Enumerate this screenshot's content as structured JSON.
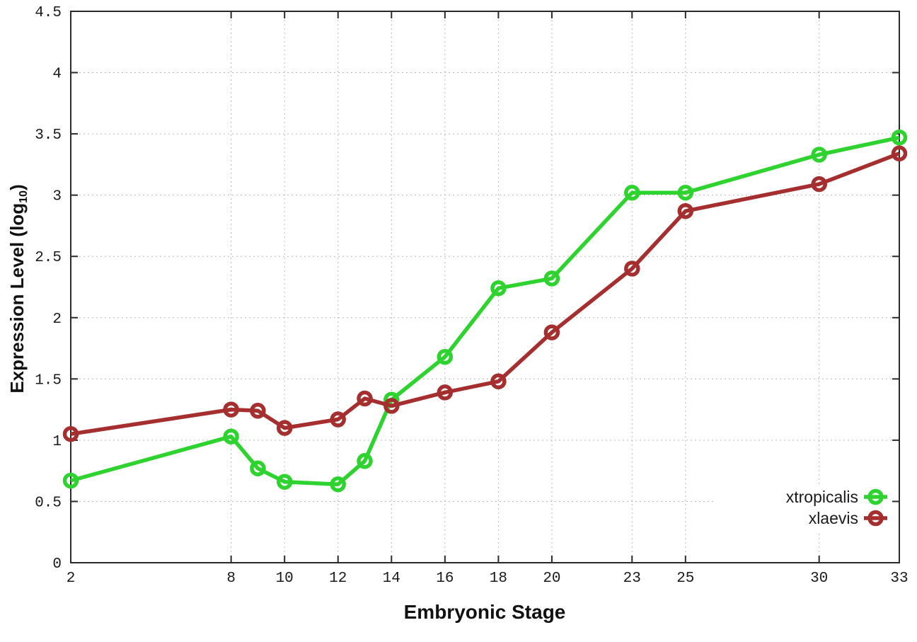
{
  "chart_data": {
    "type": "line",
    "title": "",
    "xlabel": "Embryonic Stage",
    "ylabel": "Expression Level (log10)",
    "ylabel_parts": {
      "main": "Expression Level (log",
      "sub": "10",
      "close": ")"
    },
    "xlim": [
      2,
      33
    ],
    "ylim": [
      0,
      4.5
    ],
    "grid": true,
    "legend_position": "bottom-right",
    "xticks": [
      2,
      8,
      10,
      12,
      14,
      16,
      18,
      20,
      23,
      25,
      30,
      33
    ],
    "xtick_labels": [
      "2",
      "8",
      "10",
      "12",
      "14",
      "16",
      "18",
      "20",
      "23",
      "25",
      "30",
      "33"
    ],
    "yticks": [
      0,
      0.5,
      1,
      1.5,
      2,
      2.5,
      3,
      3.5,
      4,
      4.5
    ],
    "ytick_labels": [
      "0",
      "0.5",
      "1",
      "1.5",
      "2",
      "2.5",
      "3",
      "3.5",
      "4",
      "4.5"
    ],
    "x": [
      2,
      8,
      9,
      10,
      12,
      13,
      14,
      16,
      18,
      20,
      23,
      25,
      30,
      33
    ],
    "series": [
      {
        "name": "xtropicalis",
        "color": "#2fd32f",
        "marker": "open-circle",
        "values": [
          0.67,
          1.03,
          0.77,
          0.66,
          0.64,
          0.83,
          1.33,
          1.68,
          2.24,
          2.32,
          3.02,
          3.02,
          3.33,
          3.47
        ]
      },
      {
        "name": "xlaevis",
        "color": "#a52e2e",
        "marker": "open-circle",
        "values": [
          1.05,
          1.25,
          1.24,
          1.1,
          1.17,
          1.34,
          1.28,
          1.39,
          1.48,
          1.88,
          2.4,
          2.87,
          3.09,
          3.34
        ]
      }
    ],
    "colors": {
      "background": "#ffffff",
      "axis": "#2a2a2a",
      "grid": "#b8b8b8",
      "text": "#1a1a1a"
    }
  }
}
